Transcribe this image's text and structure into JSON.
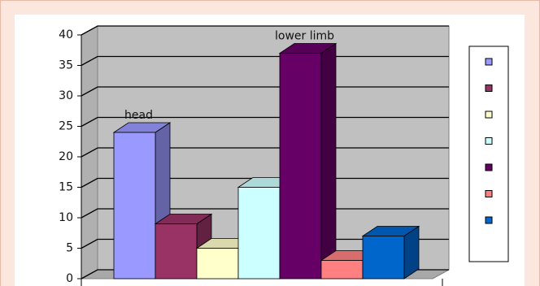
{
  "chart_data": {
    "type": "bar3d",
    "values": [
      24,
      9,
      5,
      15,
      37,
      3,
      7
    ],
    "colors": [
      "#9999ff",
      "#993366",
      "#ffffcc",
      "#ccffff",
      "#660066",
      "#ff8080",
      "#0066cc"
    ],
    "data_labels": [
      "head",
      null,
      null,
      null,
      "lower limb",
      null,
      null
    ],
    "ylim": [
      0,
      40
    ],
    "yticks": [
      0,
      5,
      10,
      15,
      20,
      25,
      30,
      35,
      40
    ],
    "grid": true,
    "legend": "right"
  }
}
